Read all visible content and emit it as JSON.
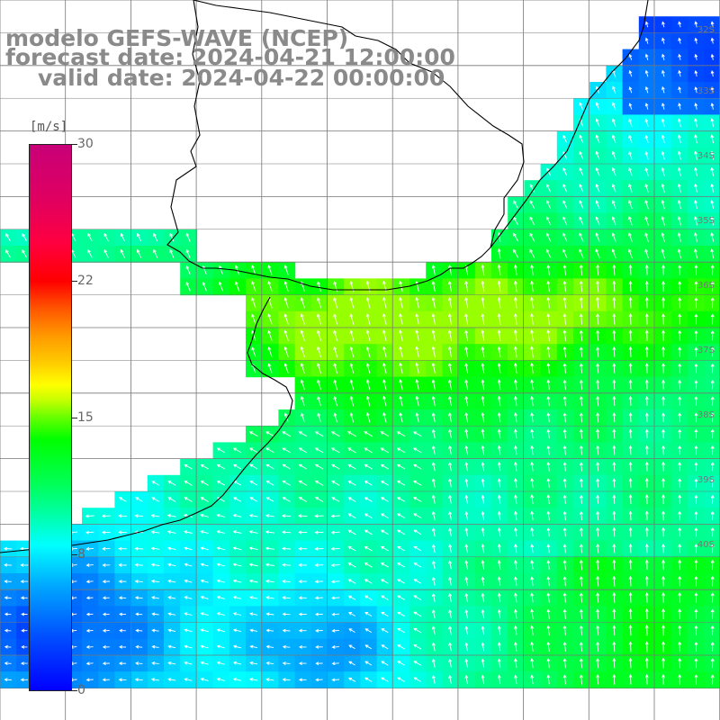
{
  "title": {
    "line1": "modelo GEFS-WAVE (NCEP)",
    "line2": "forecast date: 2024-04-21 12:00:00",
    "line3": "valid date: 2024-04-22 00:00:00"
  },
  "colorbar": {
    "unit": "[m/s]",
    "min": 0,
    "max": 30,
    "ticks": [
      "30",
      "22",
      "15",
      "8",
      "0"
    ],
    "tick_values": [
      30,
      22,
      15,
      8,
      0
    ],
    "colors": [
      "#0000ff",
      "#00a6ff",
      "#00ffff",
      "#00ff00",
      "#ffff00",
      "#ff0000",
      "#c80078"
    ]
  },
  "map": {
    "lat_labels": [
      "32S",
      "33S",
      "34S",
      "35S",
      "36S",
      "37S",
      "38S",
      "39S",
      "40S"
    ],
    "grid_color": "#777777",
    "land_color": "#ffffff",
    "coast_color": "#000000",
    "arrow_color": "#ffffff"
  }
}
